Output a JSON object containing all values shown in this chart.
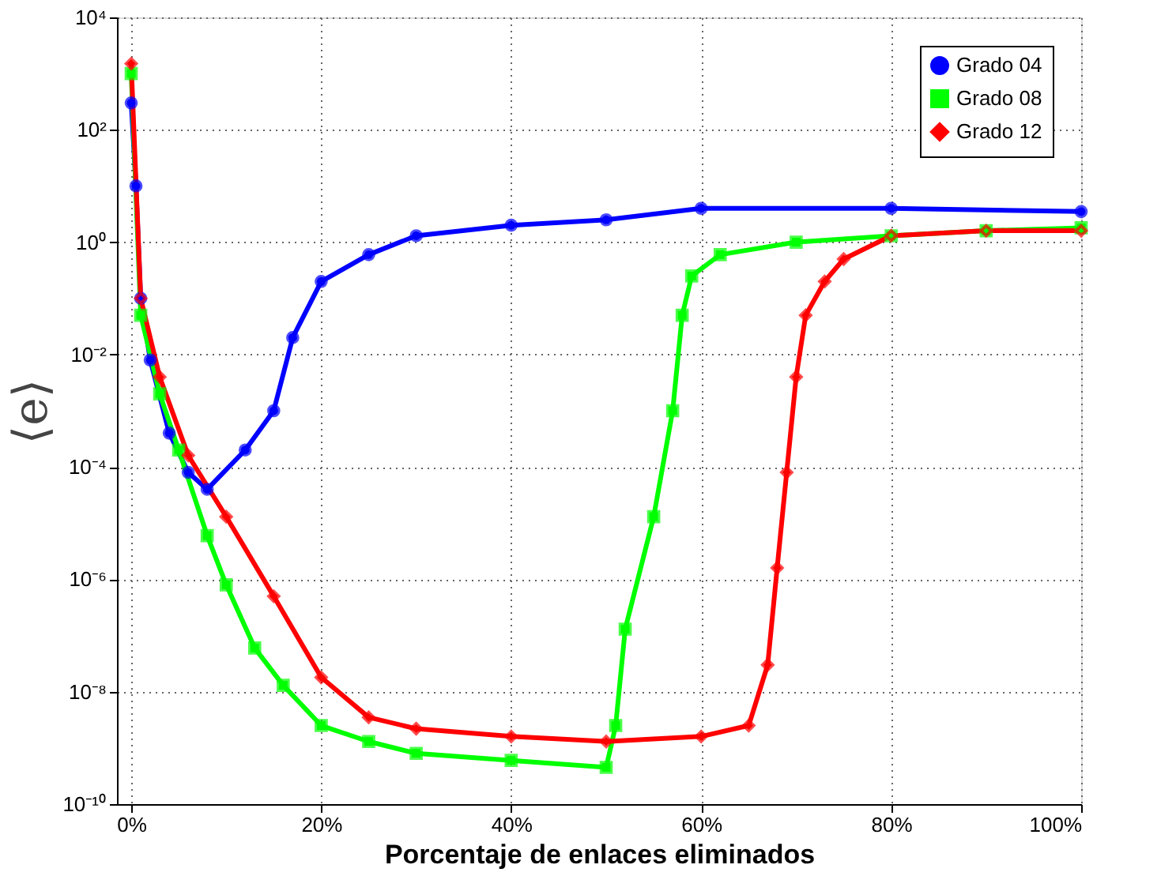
{
  "chart_data": {
    "type": "line",
    "xlabel": "Porcentaje de enlaces eliminados",
    "ylabel": "⟨e⟩",
    "log": "y",
    "grid": true,
    "legend": "top right",
    "line_style": "solid",
    "xlim": [
      -1.5,
      100
    ],
    "xticks": [
      {
        "value": 0,
        "label": "0%"
      },
      {
        "value": 20,
        "label": "20%"
      },
      {
        "value": 40,
        "label": "40%"
      },
      {
        "value": 60,
        "label": "60%"
      },
      {
        "value": 80,
        "label": "80%"
      },
      {
        "value": 100,
        "label": "100%"
      }
    ],
    "ylim": [
      1e-10,
      10000
    ],
    "yticks": [
      {
        "value": 1e-10,
        "label": "10⁻¹⁰"
      },
      {
        "value": 1e-08,
        "label": "10⁻⁸"
      },
      {
        "value": 1e-06,
        "label": "10⁻⁶"
      },
      {
        "value": 0.0001,
        "label": "10⁻⁴"
      },
      {
        "value": 0.01,
        "label": "10⁻²"
      },
      {
        "value": 1,
        "label": "10⁰"
      },
      {
        "value": 100,
        "label": "10²"
      },
      {
        "value": 10000,
        "label": "10⁴"
      }
    ],
    "series": [
      {
        "name": "Grado 04",
        "color": "#0000ff",
        "marker": "circle",
        "x": [
          0,
          0.5,
          1,
          2,
          4,
          6,
          8,
          12,
          15,
          17,
          20,
          25,
          30,
          40,
          50,
          60,
          80,
          100
        ],
        "values": [
          300,
          10,
          0.1,
          0.008,
          0.0004,
          8e-05,
          4e-05,
          0.0002,
          0.001,
          0.02,
          0.2,
          0.6,
          1.3,
          2,
          2.5,
          4,
          4,
          3.5
        ]
      },
      {
        "name": "Grado 08",
        "color": "#00ff00",
        "marker": "square",
        "x": [
          0,
          1,
          3,
          5,
          8,
          10,
          13,
          16,
          20,
          25,
          30,
          40,
          50,
          51,
          52,
          55,
          57,
          58,
          59,
          62,
          70,
          80,
          90,
          100
        ],
        "values": [
          1000,
          0.05,
          0.002,
          0.0002,
          6e-06,
          8e-07,
          6e-08,
          1.3e-08,
          2.5e-09,
          1.3e-09,
          8e-10,
          6e-10,
          4.5e-10,
          2.5e-09,
          1.3e-07,
          1.3e-05,
          0.001,
          0.05,
          0.25,
          0.6,
          1,
          1.3,
          1.6,
          1.8
        ]
      },
      {
        "name": "Grado 12",
        "color": "#ff0000",
        "marker": "diamond",
        "x": [
          0,
          1,
          3,
          6,
          10,
          15,
          20,
          25,
          30,
          40,
          50,
          60,
          65,
          67,
          68,
          69,
          70,
          71,
          73,
          75,
          80,
          90,
          100
        ],
        "values": [
          1500,
          0.1,
          0.004,
          0.00016,
          1.3e-05,
          5e-07,
          1.8e-08,
          3.5e-09,
          2.2e-09,
          1.6e-09,
          1.3e-09,
          1.6e-09,
          2.5e-09,
          3e-08,
          1.6e-06,
          8e-05,
          0.004,
          0.05,
          0.2,
          0.5,
          1.3,
          1.6,
          1.6
        ]
      }
    ]
  }
}
